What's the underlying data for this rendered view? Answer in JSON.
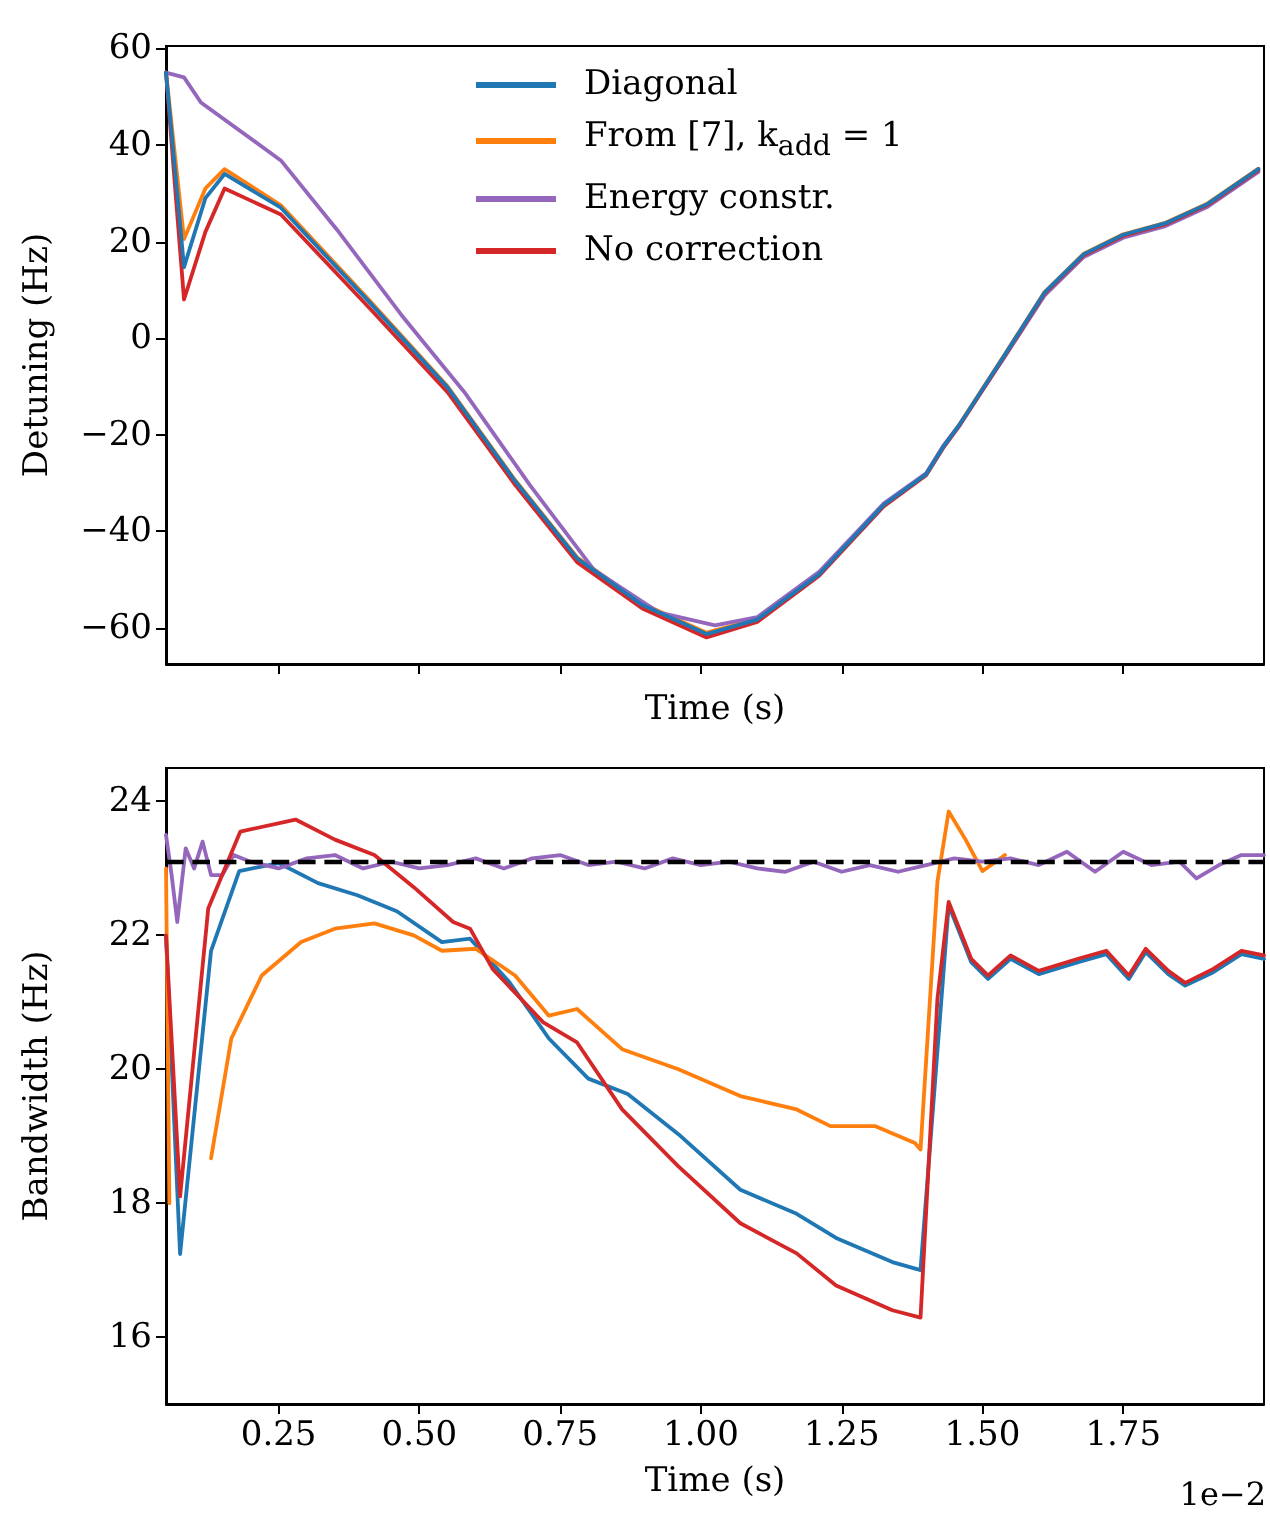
{
  "chart_data": [
    {
      "type": "line",
      "ylabel": "Detuning (Hz)",
      "xlabel": "Time (s)",
      "xlim": [
        0.05,
        2.0
      ],
      "ylim": [
        -67.5,
        60.5
      ],
      "yticks": [
        -60,
        -40,
        -20,
        0,
        20,
        40,
        60
      ],
      "xticks": [
        0.25,
        0.5,
        0.75,
        1,
        1.25,
        1.5,
        1.75
      ],
      "tick_labels": "y",
      "grid": false,
      "legend": "top",
      "series": [
        {
          "name": "Diagonal",
          "color": "#1f77b4",
          "x": [
            0.05,
            0.082,
            0.12,
            0.154,
            0.254,
            0.41,
            0.55,
            0.67,
            0.78,
            0.896,
            1.01,
            1.1,
            1.21,
            1.325,
            1.4,
            1.43,
            1.46,
            1.54,
            1.61,
            1.68,
            1.75,
            1.825,
            1.9,
            1.99
          ],
          "values": [
            55,
            14.7,
            29,
            34,
            27,
            7.6,
            -10.2,
            -29.6,
            -45.6,
            -55.3,
            -61.3,
            -58.3,
            -48.9,
            -34.5,
            -28.2,
            -22.6,
            -17.8,
            -3.4,
            9.4,
            17.4,
            21.4,
            23.8,
            27.8,
            35
          ]
        },
        {
          "name": "From [7], k$_{add}$ = 1",
          "color": "#ff7f0e",
          "x": [
            0.05,
            0.082,
            0.12,
            0.154,
            0.254,
            0.41,
            0.55,
            0.67,
            0.78,
            0.896,
            1.01,
            1.1,
            1.21,
            1.325,
            1.4,
            1.43,
            1.46,
            1.54,
            1.61,
            1.68,
            1.75,
            1.825,
            1.9,
            1.99
          ],
          "values": [
            55,
            20.5,
            31,
            35,
            27.5,
            8,
            -10,
            -29.4,
            -45.4,
            -55,
            -61,
            -58.2,
            -48.8,
            -34.4,
            -28.1,
            -22.5,
            -17.7,
            -3.3,
            9.5,
            17.5,
            21.5,
            23.9,
            27.9,
            35.1
          ]
        },
        {
          "name": "Energy constr.",
          "color": "#9467bd",
          "x": [
            0.05,
            0.082,
            0.112,
            0.254,
            0.354,
            0.468,
            0.58,
            0.696,
            0.81,
            0.925,
            1.025,
            1.1,
            1.21,
            1.325,
            1.4,
            1.43,
            1.46,
            1.54,
            1.61,
            1.68,
            1.75,
            1.825,
            1.9,
            1.99
          ],
          "values": [
            55,
            54,
            48.8,
            36.8,
            22.4,
            4.8,
            -11.2,
            -30.4,
            -48,
            -56.8,
            -59.5,
            -57.8,
            -48.4,
            -34.2,
            -28,
            -22.4,
            -17.8,
            -3.8,
            8.8,
            16.8,
            20.8,
            23.2,
            27.2,
            34.4
          ]
        },
        {
          "name": "No correction",
          "color": "#d62728",
          "x": [
            0.05,
            0.082,
            0.12,
            0.154,
            0.254,
            0.41,
            0.55,
            0.67,
            0.78,
            0.896,
            1.01,
            1.1,
            1.21,
            1.325,
            1.4,
            1.43,
            1.46,
            1.54,
            1.61,
            1.68,
            1.75,
            1.825,
            1.9,
            1.99
          ],
          "values": [
            55,
            8,
            22,
            31,
            25.6,
            6.4,
            -11.2,
            -30.4,
            -46.4,
            -56,
            -62,
            -58.8,
            -49.2,
            -34.8,
            -28.4,
            -22.8,
            -18,
            -3.6,
            9.2,
            17.2,
            21.2,
            23.6,
            27.6,
            34.8
          ]
        }
      ]
    },
    {
      "type": "line",
      "ylabel": "Bandwidth (Hz)",
      "xlabel": "Time (s)",
      "xlim": [
        0.05,
        2.0
      ],
      "ylim": [
        15,
        24.5
      ],
      "yticks": [
        16,
        18,
        20,
        22,
        24
      ],
      "xticks": [
        0.25,
        {
          "value": 0.5,
          "label": "0.50"
        },
        0.75,
        {
          "value": 1,
          "label": "1.00"
        },
        1.25,
        {
          "value": 1.5,
          "label": "1.50"
        },
        1.75
      ],
      "grid": false,
      "annotations": [
        "1e−2"
      ],
      "ref_lines": [
        {
          "axis": "y",
          "value": 23.1,
          "color": "#000000",
          "line_style": "dashed"
        }
      ],
      "series": [
        {
          "color": "#1f77b4",
          "x": [
            0.05,
            0.075,
            0.13,
            0.18,
            0.25,
            0.32,
            0.39,
            0.46,
            0.54,
            0.59,
            0.66,
            0.73,
            0.8,
            0.87,
            0.96,
            1.07,
            1.17,
            1.24,
            1.34,
            1.39,
            1.44,
            1.48,
            1.51,
            1.55,
            1.6,
            1.67,
            1.72,
            1.76,
            1.79,
            1.83,
            1.86,
            1.91,
            1.96,
            2.0
          ],
          "values": [
            22,
            17.24,
            21.77,
            22.96,
            23.08,
            22.78,
            22.6,
            22.36,
            21.9,
            21.95,
            21.3,
            20.46,
            19.86,
            19.63,
            19.03,
            18.2,
            17.84,
            17.48,
            17.12,
            17,
            22.45,
            21.6,
            21.35,
            21.65,
            21.42,
            21.6,
            21.72,
            21.35,
            21.75,
            21.42,
            21.25,
            21.45,
            21.72,
            21.65
          ]
        },
        {
          "color": "#ff7f0e",
          "x": [
            0.05,
            0.056,
            null,
            0.13,
            0.166,
            0.22,
            0.29,
            0.35,
            0.42,
            0.49,
            0.54,
            0.6,
            0.67,
            0.73,
            0.78,
            0.86,
            0.96,
            1.07,
            1.17,
            1.23,
            1.31,
            1.38,
            1.39,
            1.42,
            1.44,
            1.47,
            1.5,
            1.54
          ],
          "values": [
            23,
            18,
            null,
            18.67,
            20.46,
            21.4,
            21.9,
            22.1,
            22.18,
            22,
            21.77,
            21.8,
            21.4,
            20.8,
            20.9,
            20.3,
            20,
            19.6,
            19.4,
            19.15,
            19.15,
            18.9,
            18.8,
            22.8,
            23.85,
            23.43,
            22.96,
            23.2
          ]
        },
        {
          "color": "#9467bd",
          "x": [
            0.05,
            0.06,
            0.07,
            0.085,
            0.1,
            0.115,
            0.13,
            0.15,
            0.17,
            0.2,
            0.25,
            0.3,
            0.35,
            0.4,
            0.45,
            0.5,
            0.55,
            0.6,
            0.65,
            0.7,
            0.75,
            0.8,
            0.85,
            0.9,
            0.95,
            1.0,
            1.05,
            1.1,
            1.15,
            1.2,
            1.25,
            1.3,
            1.35,
            1.4,
            1.45,
            1.5,
            1.55,
            1.6,
            1.65,
            1.7,
            1.75,
            1.8,
            1.85,
            1.88,
            1.92,
            1.96,
            2.0
          ],
          "values": [
            23.5,
            22.9,
            22.2,
            23.3,
            23,
            23.4,
            22.9,
            22.9,
            23.2,
            23.1,
            23,
            23.15,
            23.2,
            23,
            23.1,
            23,
            23.05,
            23.15,
            23,
            23.15,
            23.2,
            23.05,
            23.1,
            23,
            23.15,
            23.05,
            23.1,
            23,
            22.95,
            23.1,
            22.95,
            23.05,
            22.95,
            23.05,
            23.15,
            23.1,
            23.15,
            23.05,
            23.25,
            22.95,
            23.25,
            23.05,
            23.1,
            22.85,
            23.05,
            23.2,
            23.2
          ]
        },
        {
          "color": "#d62728",
          "x": [
            0.05,
            0.075,
            0.125,
            0.182,
            0.28,
            0.35,
            0.42,
            0.49,
            0.56,
            0.59,
            0.63,
            0.72,
            0.78,
            0.86,
            0.96,
            1.07,
            1.17,
            1.24,
            1.34,
            1.39,
            1.42,
            1.44,
            1.48,
            1.51,
            1.55,
            1.6,
            1.67,
            1.72,
            1.76,
            1.79,
            1.83,
            1.86,
            1.91,
            1.96,
            2.0
          ],
          "values": [
            22,
            18.1,
            22.4,
            23.55,
            23.73,
            23.43,
            23.2,
            22.72,
            22.2,
            22.1,
            21.5,
            20.7,
            20.4,
            19.4,
            18.55,
            17.7,
            17.25,
            16.77,
            16.4,
            16.29,
            21.05,
            22.5,
            21.65,
            21.4,
            21.7,
            21.47,
            21.65,
            21.77,
            21.4,
            21.8,
            21.47,
            21.29,
            21.5,
            21.77,
            21.7
          ]
        }
      ]
    }
  ]
}
